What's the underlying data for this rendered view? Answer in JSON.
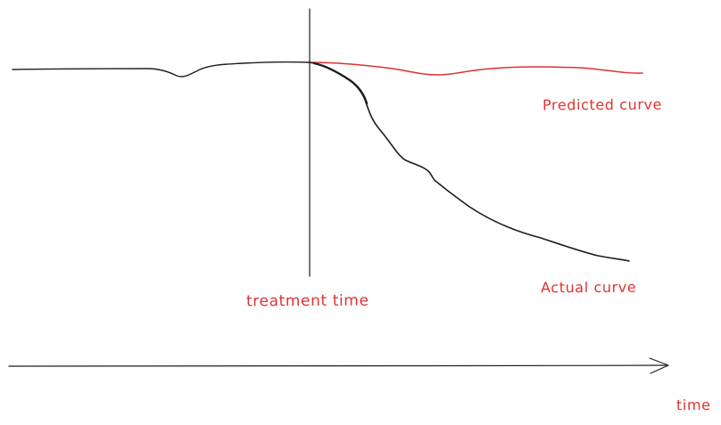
{
  "diagram": {
    "labels": {
      "treatment_time": "treatment time",
      "predicted_curve": "Predicted curve",
      "actual_curve": "Actual curve",
      "time_axis": "time"
    },
    "colors": {
      "ink": "#1e1e1e",
      "annotation": "#e03131",
      "background": "#ffffff"
    }
  }
}
